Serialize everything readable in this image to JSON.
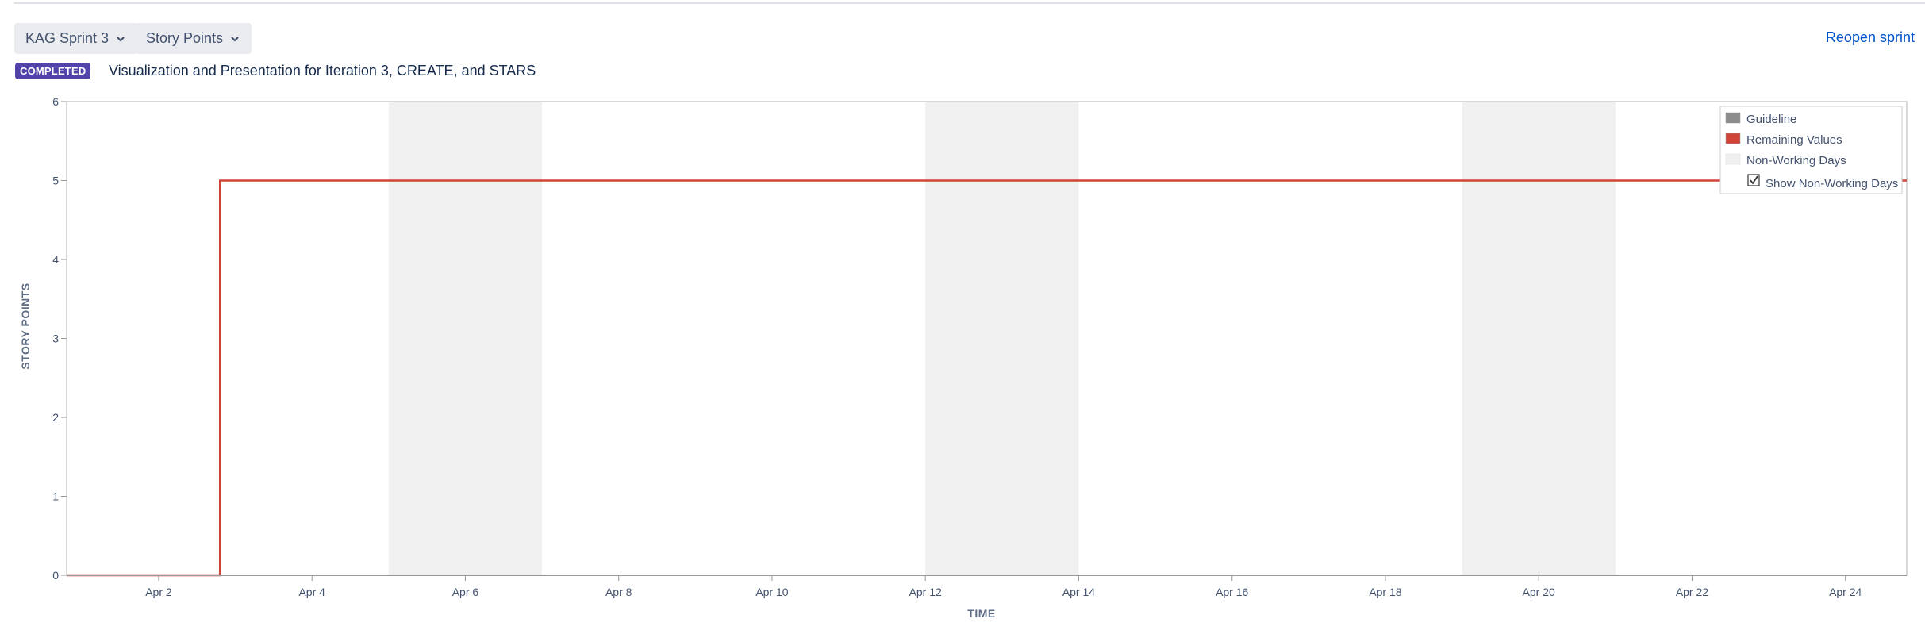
{
  "header": {
    "sprint_select": "KAG Sprint 3",
    "measure_select": "Story Points",
    "reopen_link": "Reopen sprint",
    "status_badge": "COMPLETED",
    "sprint_goal": "Visualization and Presentation for Iteration 3, CREATE, and STARS"
  },
  "chart_data": {
    "type": "line",
    "title": "",
    "xlabel": "TIME",
    "ylabel": "STORY POINTS",
    "ylim": [
      0,
      6
    ],
    "yticks": [
      0,
      1,
      2,
      3,
      4,
      5,
      6
    ],
    "xlim_days": [
      0.8,
      24.8
    ],
    "xticks": [
      {
        "day": 2,
        "label": "Apr 2"
      },
      {
        "day": 4,
        "label": "Apr 4"
      },
      {
        "day": 6,
        "label": "Apr 6"
      },
      {
        "day": 8,
        "label": "Apr 8"
      },
      {
        "day": 10,
        "label": "Apr 10"
      },
      {
        "day": 12,
        "label": "Apr 12"
      },
      {
        "day": 14,
        "label": "Apr 14"
      },
      {
        "day": 16,
        "label": "Apr 16"
      },
      {
        "day": 18,
        "label": "Apr 18"
      },
      {
        "day": 20,
        "label": "Apr 20"
      },
      {
        "day": 22,
        "label": "Apr 22"
      },
      {
        "day": 24,
        "label": "Apr 24"
      }
    ],
    "non_working_days": [
      [
        5,
        7
      ],
      [
        12,
        14
      ],
      [
        19,
        21
      ]
    ],
    "series": [
      {
        "name": "Remaining Values",
        "color": "#d04437",
        "step": true,
        "points": [
          [
            0.8,
            0
          ],
          [
            2.8,
            0
          ],
          [
            2.8,
            5
          ],
          [
            24.8,
            5
          ]
        ]
      },
      {
        "name": "Guideline",
        "color": "#8c8c8c",
        "points": []
      }
    ],
    "legend": {
      "placement": "top-right",
      "items": [
        {
          "name": "Guideline",
          "color": "#8c8c8c"
        },
        {
          "name": "Remaining Values",
          "color": "#d04437"
        },
        {
          "name": "Non-Working Days",
          "color": "#f0f0f0"
        }
      ],
      "checkbox_label": "Show Non-Working Days",
      "checkbox_checked": true
    }
  }
}
